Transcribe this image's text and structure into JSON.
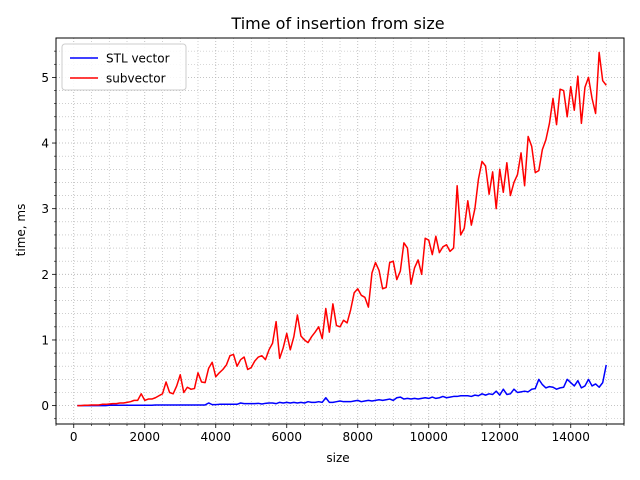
{
  "chart_data": {
    "type": "line",
    "title": "Time of insertion from size",
    "xlabel": "size",
    "ylabel": "time, ms",
    "xlim": [
      -500,
      15500
    ],
    "ylim": [
      -0.28,
      5.6
    ],
    "xticks": [
      0,
      2000,
      4000,
      6000,
      8000,
      10000,
      12000,
      14000
    ],
    "xtick_labels": [
      "0",
      "2000",
      "4000",
      "6000",
      "8000",
      "10000",
      "12000",
      "14000"
    ],
    "yticks": [
      0,
      1,
      2,
      3,
      4,
      5
    ],
    "ytick_labels": [
      "0",
      "1",
      "2",
      "3",
      "4",
      "5"
    ],
    "grid": true,
    "legend_position": "upper-left",
    "x": [
      100,
      200,
      300,
      400,
      500,
      600,
      700,
      800,
      900,
      1000,
      1100,
      1200,
      1300,
      1400,
      1500,
      1600,
      1700,
      1800,
      1900,
      2000,
      2100,
      2200,
      2300,
      2400,
      2500,
      2600,
      2700,
      2800,
      2900,
      3000,
      3100,
      3200,
      3300,
      3400,
      3500,
      3600,
      3700,
      3800,
      3900,
      4000,
      4100,
      4200,
      4300,
      4400,
      4500,
      4600,
      4700,
      4800,
      4900,
      5000,
      5100,
      5200,
      5300,
      5400,
      5500,
      5600,
      5700,
      5800,
      5900,
      6000,
      6100,
      6200,
      6300,
      6400,
      6500,
      6600,
      6700,
      6800,
      6900,
      7000,
      7100,
      7200,
      7300,
      7400,
      7500,
      7600,
      7700,
      7800,
      7900,
      8000,
      8100,
      8200,
      8300,
      8400,
      8500,
      8600,
      8700,
      8800,
      8900,
      9000,
      9100,
      9200,
      9300,
      9400,
      9500,
      9600,
      9700,
      9800,
      9900,
      10000,
      10100,
      10200,
      10300,
      10400,
      10500,
      10600,
      10700,
      10800,
      10900,
      11000,
      11100,
      11200,
      11300,
      11400,
      11500,
      11600,
      11700,
      11800,
      11900,
      12000,
      12100,
      12200,
      12300,
      12400,
      12500,
      12600,
      12700,
      12800,
      12900,
      13000,
      13100,
      13200,
      13300,
      13400,
      13500,
      13600,
      13700,
      13800,
      13900,
      14000,
      14100,
      14200,
      14300,
      14400,
      14500,
      14600,
      14700,
      14800,
      14900,
      15000
    ],
    "series": [
      {
        "name": "STL vector",
        "color": "#0000ff",
        "values": [
          0.0,
          0.0,
          0.0,
          0.0,
          0.0,
          0.0,
          0.0,
          0.0,
          0.0,
          0.005,
          0.005,
          0.005,
          0.005,
          0.005,
          0.005,
          0.005,
          0.005,
          0.005,
          0.005,
          0.005,
          0.005,
          0.005,
          0.01,
          0.01,
          0.01,
          0.01,
          0.01,
          0.01,
          0.01,
          0.01,
          0.01,
          0.01,
          0.01,
          0.01,
          0.01,
          0.01,
          0.01,
          0.04,
          0.015,
          0.015,
          0.02,
          0.02,
          0.02,
          0.02,
          0.02,
          0.02,
          0.04,
          0.03,
          0.03,
          0.03,
          0.03,
          0.035,
          0.025,
          0.035,
          0.04,
          0.04,
          0.03,
          0.05,
          0.04,
          0.05,
          0.04,
          0.05,
          0.04,
          0.05,
          0.04,
          0.06,
          0.05,
          0.05,
          0.06,
          0.05,
          0.12,
          0.05,
          0.05,
          0.06,
          0.07,
          0.06,
          0.06,
          0.06,
          0.07,
          0.08,
          0.06,
          0.07,
          0.08,
          0.07,
          0.08,
          0.09,
          0.08,
          0.09,
          0.1,
          0.08,
          0.12,
          0.13,
          0.1,
          0.11,
          0.1,
          0.11,
          0.1,
          0.11,
          0.12,
          0.11,
          0.13,
          0.11,
          0.12,
          0.14,
          0.12,
          0.13,
          0.14,
          0.14,
          0.15,
          0.15,
          0.15,
          0.14,
          0.16,
          0.15,
          0.18,
          0.16,
          0.18,
          0.17,
          0.22,
          0.16,
          0.25,
          0.17,
          0.18,
          0.25,
          0.2,
          0.21,
          0.22,
          0.21,
          0.25,
          0.26,
          0.4,
          0.32,
          0.27,
          0.29,
          0.28,
          0.25,
          0.27,
          0.28,
          0.4,
          0.35,
          0.3,
          0.38,
          0.27,
          0.3,
          0.4,
          0.3,
          0.33,
          0.28,
          0.35,
          0.62
        ]
      },
      {
        "name": "subvector",
        "color": "#ff0000",
        "values": [
          0.0,
          0.0,
          0.005,
          0.005,
          0.01,
          0.01,
          0.01,
          0.02,
          0.02,
          0.025,
          0.03,
          0.03,
          0.04,
          0.04,
          0.05,
          0.06,
          0.08,
          0.08,
          0.18,
          0.08,
          0.1,
          0.1,
          0.12,
          0.15,
          0.18,
          0.36,
          0.2,
          0.18,
          0.3,
          0.47,
          0.2,
          0.28,
          0.25,
          0.26,
          0.5,
          0.36,
          0.35,
          0.57,
          0.66,
          0.44,
          0.5,
          0.55,
          0.62,
          0.76,
          0.78,
          0.6,
          0.7,
          0.74,
          0.55,
          0.58,
          0.68,
          0.74,
          0.76,
          0.7,
          0.85,
          0.95,
          1.28,
          0.72,
          0.88,
          1.1,
          0.85,
          1.05,
          1.38,
          1.06,
          1.0,
          0.96,
          1.05,
          1.12,
          1.2,
          1.02,
          1.48,
          1.12,
          1.55,
          1.22,
          1.2,
          1.3,
          1.26,
          1.46,
          1.72,
          1.78,
          1.68,
          1.65,
          1.5,
          2.02,
          2.18,
          2.06,
          1.78,
          1.8,
          2.18,
          2.2,
          1.92,
          2.05,
          2.48,
          2.4,
          1.85,
          2.1,
          2.22,
          2.0,
          2.55,
          2.52,
          2.3,
          2.58,
          2.33,
          2.42,
          2.45,
          2.35,
          2.4,
          3.35,
          2.6,
          2.7,
          3.12,
          2.75,
          3.0,
          3.45,
          3.72,
          3.65,
          3.22,
          3.56,
          3.0,
          3.6,
          3.25,
          3.7,
          3.2,
          3.4,
          3.52,
          3.85,
          3.35,
          4.1,
          3.95,
          3.55,
          3.58,
          3.9,
          4.05,
          4.3,
          4.68,
          4.28,
          4.82,
          4.8,
          4.4,
          4.86,
          4.5,
          5.02,
          4.3,
          4.85,
          5.0,
          4.68,
          4.45,
          5.38,
          4.95,
          4.88
        ]
      }
    ]
  }
}
